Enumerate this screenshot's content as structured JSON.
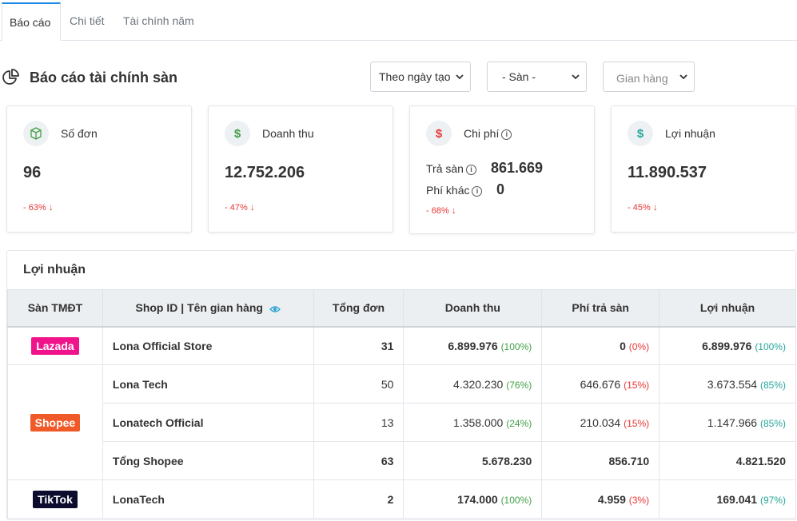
{
  "tabs": [
    {
      "label": "Báo cáo"
    },
    {
      "label": "Chi tiết"
    },
    {
      "label": "Tài chính năm"
    }
  ],
  "header": {
    "title": "Báo cáo tài chính sàn",
    "filters": {
      "date_mode": "Theo ngày tạo",
      "platform": "- Sàn -",
      "store_placeholder": "Gian hàng"
    }
  },
  "cards": {
    "orders": {
      "label": "Số đơn",
      "value": "96",
      "change": "- 63%",
      "icon": "box-icon",
      "color": "#43a047"
    },
    "revenue": {
      "label": "Doanh thu",
      "value": "12.752.206",
      "change": "- 47%",
      "icon": "dollar-icon",
      "color": "#43a047"
    },
    "cost": {
      "label": "Chi phí",
      "fee_label": "Trả sàn",
      "fee_value": "861.669",
      "other_label": "Phí khác",
      "other_value": "0",
      "change": "- 68%",
      "icon": "dollar-icon",
      "color": "#e53935"
    },
    "profit": {
      "label": "Lợi nhuận",
      "value": "11.890.537",
      "change": "- 45%",
      "icon": "dollar-icon",
      "color": "#26a69a"
    }
  },
  "profit_table": {
    "title": "Lợi nhuận",
    "columns": [
      "Sàn TMĐT",
      "Shop ID | Tên gian hàng",
      "Tổng đơn",
      "Doanh thu",
      "Phí trả sàn",
      "Lợi nhuận"
    ],
    "platforms": {
      "lazada": {
        "label": "Lazada",
        "color": "#f0148c"
      },
      "shopee": {
        "label": "Shopee",
        "color": "#f05a28"
      },
      "tiktok": {
        "label": "TikTok",
        "color": "#0c0c2e"
      }
    },
    "rows": [
      {
        "shop": "Lona Official Store",
        "orders": "31",
        "revenue": "6.899.976",
        "revenue_pct": "(100%)",
        "fee": "0",
        "fee_pct": "(0%)",
        "profit": "6.899.976",
        "profit_pct": "(100%)"
      },
      {
        "shop": "Lona Tech",
        "orders": "50",
        "revenue": "4.320.230",
        "revenue_pct": "(76%)",
        "fee": "646.676",
        "fee_pct": "(15%)",
        "profit": "3.673.554",
        "profit_pct": "(85%)"
      },
      {
        "shop": "Lonatech Official",
        "orders": "13",
        "revenue": "1.358.000",
        "revenue_pct": "(24%)",
        "fee": "210.034",
        "fee_pct": "(15%)",
        "profit": "1.147.966",
        "profit_pct": "(85%)"
      },
      {
        "shop": "Tổng Shopee",
        "orders": "63",
        "revenue": "5.678.230",
        "fee": "856.710",
        "profit": "4.821.520"
      },
      {
        "shop": "LonaTech",
        "orders": "2",
        "revenue": "174.000",
        "revenue_pct": "(100%)",
        "fee": "4.959",
        "fee_pct": "(3%)",
        "profit": "169.041",
        "profit_pct": "(97%)"
      }
    ]
  }
}
